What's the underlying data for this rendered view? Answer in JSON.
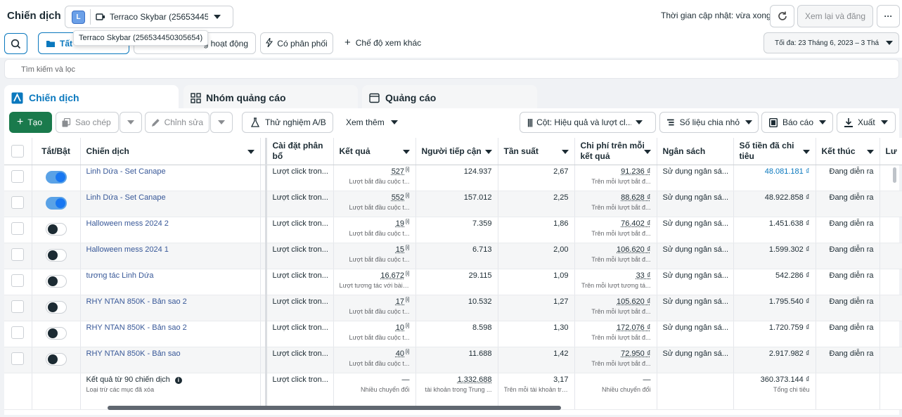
{
  "header": {
    "title": "Chiến dịch",
    "account_initial": "L",
    "account_name": "Terraco Skybar (256534450...",
    "tooltip": "Terraco Skybar (256534450305654)",
    "last_update": "Thời gian cập nhật: vừa xong",
    "review_publish": "Xem lại và đăng",
    "more": "···"
  },
  "filters": {
    "all_label": "Tất",
    "active_label": "g hoạt động",
    "delivery_label": "Có phân phối",
    "view_mode_label": "Chế độ xem khác",
    "date_range": "Tối đa: 23 Tháng 6, 2023 – 3 Thá",
    "search_placeholder": "Tìm kiếm và lọc"
  },
  "tabs": [
    {
      "label": "Chiến dịch"
    },
    {
      "label": "Nhóm quảng cáo"
    },
    {
      "label": "Quảng cáo"
    }
  ],
  "toolbar": {
    "create": "Tạo",
    "duplicate": "Sao chép",
    "edit": "Chỉnh sửa",
    "ab_test": "Thử nghiệm A/B",
    "see_more": "Xem thêm",
    "columns": "Cột: Hiệu quả và lượt cl...",
    "breakdown": "Số liệu chia nhỏ",
    "reports": "Báo cáo",
    "export": "Xuất"
  },
  "columns": [
    "Tắt/Bật",
    "Chiến dịch",
    "Cài đặt phân bổ",
    "Kết quả",
    "Người tiếp cận",
    "Tần suất",
    "Chi phí trên mỗi kết quả",
    "Ngân sách",
    "Số tiền đã chi tiêu",
    "Kết thúc",
    "Lư"
  ],
  "rows": [
    {
      "on": true,
      "name": "Linh Dứa - Set Canape",
      "attribution": "Lượt click tron...",
      "result": "527",
      "result_sub": "Lượt bắt đầu cuộc t...",
      "reach": "124.937",
      "freq": "2,67",
      "cpr": "91.236 ₫",
      "cpr_sub": "Trên mỗi lượt bắt đ...",
      "budget": "Sử dụng ngân sá...",
      "spent": "48.081.181 ₫",
      "spent_link": true,
      "end": "Đang diễn ra"
    },
    {
      "on": true,
      "name": "Linh Dứa - Set Canape",
      "attribution": "Lượt click tron...",
      "result": "552",
      "result_sub": "Lượt bắt đầu cuộc t...",
      "reach": "157.012",
      "freq": "2,25",
      "cpr": "88.628 ₫",
      "cpr_sub": "Trên mỗi lượt bắt đ...",
      "budget": "Sử dụng ngân sá...",
      "spent": "48.922.858 ₫",
      "spent_link": false,
      "end": "Đang diễn ra"
    },
    {
      "on": false,
      "name": "Halloween mess 2024 2",
      "attribution": "Lượt click tron...",
      "result": "19",
      "result_sub": "Lượt bắt đầu cuộc t...",
      "reach": "7.359",
      "freq": "1,86",
      "cpr": "76.402 ₫",
      "cpr_sub": "Trên mỗi lượt bắt đ...",
      "budget": "Sử dụng ngân sá...",
      "spent": "1.451.638 ₫",
      "spent_link": false,
      "end": "Đang diễn ra"
    },
    {
      "on": false,
      "name": "Halloween mess 2024 1",
      "attribution": "Lượt click tron...",
      "result": "15",
      "result_sub": "Lượt bắt đầu cuộc t...",
      "reach": "6.713",
      "freq": "2,00",
      "cpr": "106.620 ₫",
      "cpr_sub": "Trên mỗi lượt bắt đ...",
      "budget": "Sử dụng ngân sá...",
      "spent": "1.599.302 ₫",
      "spent_link": false,
      "end": "Đang diễn ra"
    },
    {
      "on": false,
      "name": "tương tác Linh Dứa",
      "attribution": "Lượt click tron...",
      "result": "16.672",
      "result_sub": "Lượt tương tác với bài ...",
      "reach": "29.115",
      "freq": "1,09",
      "cpr": "33 ₫",
      "cpr_sub": "Trên mỗi lượt tương tá...",
      "budget": "Sử dụng ngân sá...",
      "spent": "542.286 ₫",
      "spent_link": false,
      "end": "Đang diễn ra"
    },
    {
      "on": false,
      "name": "RHY NTAN 850K - Bản sao 2",
      "attribution": "Lượt click tron...",
      "result": "17",
      "result_sub": "Lượt bắt đầu cuộc t...",
      "reach": "10.532",
      "freq": "1,27",
      "cpr": "105.620 ₫",
      "cpr_sub": "Trên mỗi lượt bắt đ...",
      "budget": "Sử dụng ngân sá...",
      "spent": "1.795.540 ₫",
      "spent_link": false,
      "end": "Đang diễn ra"
    },
    {
      "on": false,
      "name": "RHY NTAN 850K - Bản sao 2",
      "attribution": "Lượt click tron...",
      "result": "10",
      "result_sub": "Lượt bắt đầu cuộc t...",
      "reach": "8.598",
      "freq": "1,30",
      "cpr": "172.076 ₫",
      "cpr_sub": "Trên mỗi lượt bắt đ...",
      "budget": "Sử dụng ngân sá...",
      "spent": "1.720.759 ₫",
      "spent_link": false,
      "end": "Đang diễn ra"
    },
    {
      "on": false,
      "name": "RHY NTAN 850K - Bản sao",
      "attribution": "Lượt click tron...",
      "result": "40",
      "result_sub": "Lượt bắt đầu cuộc t...",
      "reach": "11.688",
      "freq": "1,42",
      "cpr": "72.950 ₫",
      "cpr_sub": "Trên mỗi lượt bắt đ...",
      "budget": "Sử dụng ngân sá...",
      "spent": "2.917.982 ₫",
      "spent_link": false,
      "end": "Đang diễn ra"
    }
  ],
  "summary": {
    "title": "Kết quả từ 90 chiến dịch",
    "subtitle": "Loại trừ các mục đã xóa",
    "attribution": "Lượt click tron...",
    "result": "—",
    "result_sub": "Nhiều chuyển đổi",
    "reach": "1.332.688",
    "reach_sub": "tài khoản trong Trung ...",
    "freq": "3,17",
    "freq_sub": "Trên mỗi tài khoản tron...",
    "cpr": "—",
    "cpr_sub": "Nhiều chuyển đổi",
    "spent": "360.373.144 ₫",
    "spent_sub": "Tổng chi tiêu"
  },
  "colors": {
    "accent": "#0a78be",
    "create": "#1a7a4c",
    "toggle_on": "#1877f2",
    "link": "#385898"
  }
}
